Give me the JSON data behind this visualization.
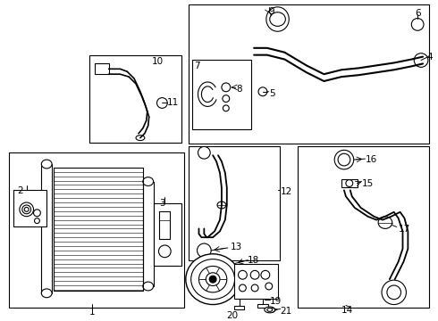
{
  "bg_color": "#ffffff",
  "lc": "#000000",
  "fig_w": 4.9,
  "fig_h": 3.6,
  "dpi": 100
}
